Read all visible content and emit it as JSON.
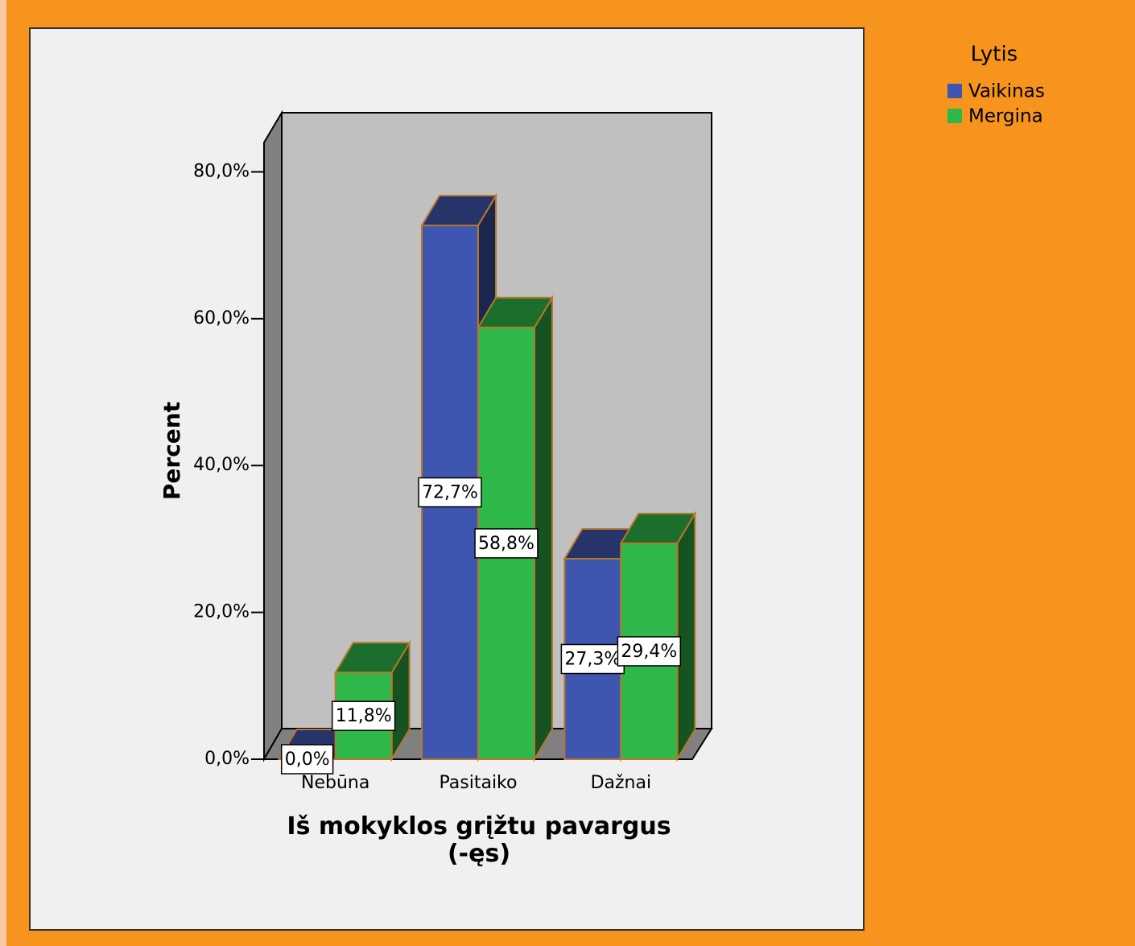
{
  "chart_data": {
    "type": "bar3d",
    "y_axis_label": "Percent",
    "x_axis_label": "Iš mokyklos grįžtu pavargus (-ęs)",
    "legend_title": "Lytis",
    "categories": [
      "Nebūna",
      "Pasitaiko",
      "Dažnai"
    ],
    "series": [
      {
        "name": "Vaikinas",
        "color": "#3f56b0",
        "values": [
          0,
          72.7,
          27.3
        ],
        "value_labels": [
          "0,0%",
          "72,7%",
          "27,3%"
        ]
      },
      {
        "name": "Mergina",
        "color": "#2fb84a",
        "values": [
          11.8,
          58.8,
          29.4
        ],
        "value_labels": [
          "11,8%",
          "58,8%",
          "29,4%"
        ]
      }
    ],
    "ylim": [
      0,
      84
    ],
    "yticks": [
      {
        "value": 0,
        "label": "0,0%"
      },
      {
        "value": 20,
        "label": "20,0%"
      },
      {
        "value": 40,
        "label": "40,0%"
      },
      {
        "value": 60,
        "label": "60,0%"
      },
      {
        "value": 80,
        "label": "80,0%"
      }
    ]
  }
}
